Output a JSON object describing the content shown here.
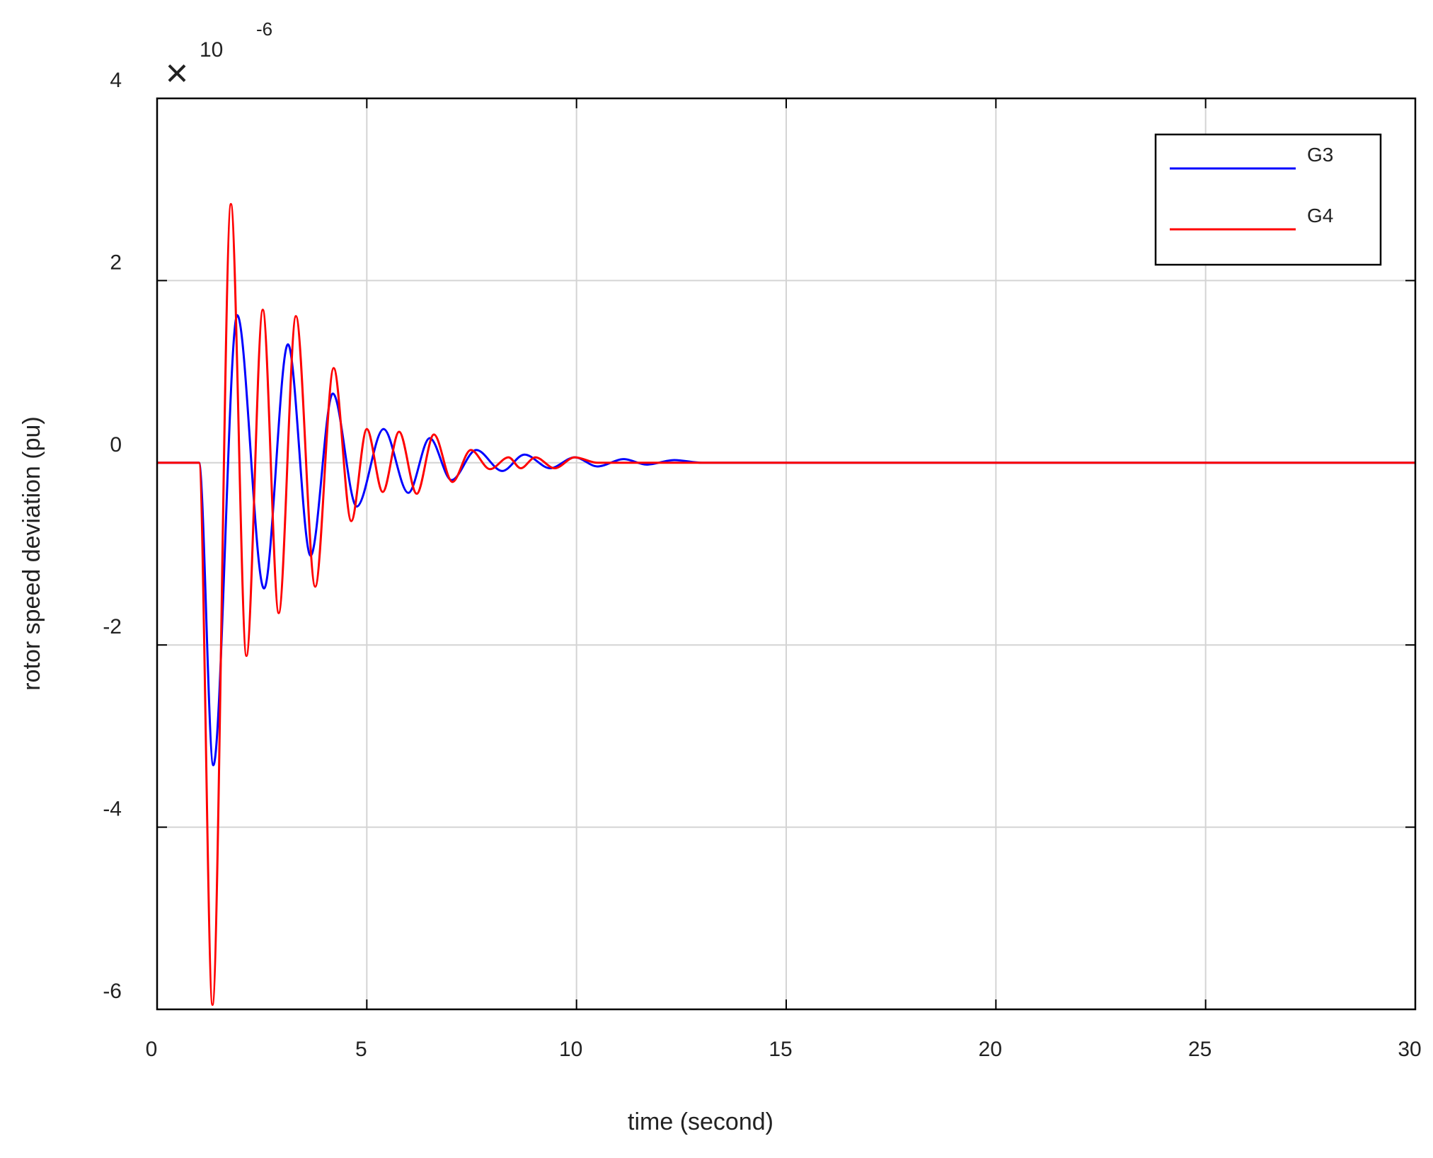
{
  "chart_data": {
    "type": "line",
    "xlabel": "time (second)",
    "ylabel": "rotor speed deviation (pu)",
    "axis_multiplier": {
      "times": "×",
      "base": "10",
      "exponent": "-6"
    },
    "xlim": [
      0,
      30
    ],
    "xticks": [
      0,
      5,
      10,
      15,
      20,
      25,
      30
    ],
    "ylim": [
      -6,
      4
    ],
    "yticks": [
      -6,
      -4,
      -2,
      0,
      2,
      4
    ],
    "grid": true,
    "legend": "upper right",
    "series": [
      {
        "name": "G3",
        "color": "#0000ff",
        "x": [
          0,
          1.0,
          1.34,
          1.91,
          2.55,
          3.12,
          3.66,
          4.19,
          4.76,
          5.4,
          5.99,
          6.5,
          7.02,
          7.61,
          8.23,
          8.76,
          9.37,
          9.96,
          10.5,
          11.13,
          11.67,
          12.33,
          13,
          30
        ],
        "values": [
          0,
          0,
          -3.32,
          1.62,
          -1.38,
          1.3,
          -1.02,
          0.76,
          -0.48,
          0.37,
          -0.33,
          0.27,
          -0.19,
          0.14,
          -0.09,
          0.09,
          -0.06,
          0.06,
          -0.04,
          0.04,
          -0.02,
          0.03,
          0,
          0
        ]
      },
      {
        "name": "G4",
        "color": "#ff0000",
        "x": [
          0,
          1.0,
          1.32,
          1.76,
          2.13,
          2.52,
          2.9,
          3.31,
          3.77,
          4.21,
          4.63,
          5.0,
          5.38,
          5.77,
          6.19,
          6.6,
          7.04,
          7.48,
          7.94,
          8.38,
          8.67,
          9.02,
          9.48,
          9.96,
          10.5,
          30
        ],
        "values": [
          0,
          0,
          -5.95,
          2.84,
          -2.12,
          1.68,
          -1.65,
          1.61,
          -1.36,
          1.04,
          -0.64,
          0.37,
          -0.32,
          0.34,
          -0.34,
          0.31,
          -0.21,
          0.14,
          -0.07,
          0.06,
          -0.06,
          0.06,
          -0.06,
          0.06,
          0,
          0
        ]
      }
    ]
  }
}
